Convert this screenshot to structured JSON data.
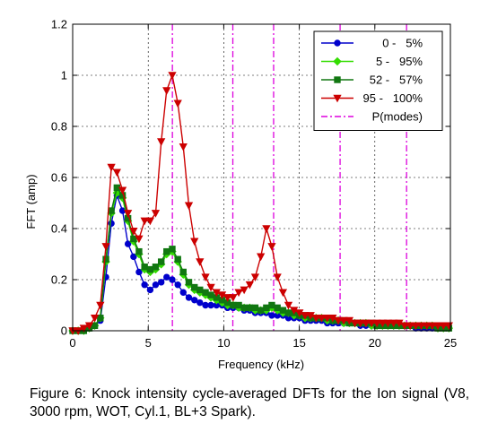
{
  "caption": "Figure 6: Knock intensity cycle-averaged DFTs for the Ion signal (V8, 3000 rpm, WOT, Cyl.1, BL+3 Spark).",
  "chart_data": {
    "type": "line",
    "title": "",
    "xlabel": "Frequency (kHz)",
    "ylabel": "FFT (amp)",
    "xlim": [
      0,
      25
    ],
    "ylim": [
      0,
      1.2
    ],
    "xticks": [
      0,
      5,
      10,
      15,
      20,
      25
    ],
    "xtick_labels": [
      "0",
      "5",
      "10",
      "15",
      "20",
      "25"
    ],
    "yticks": [
      0,
      0.2,
      0.4,
      0.6,
      0.8,
      1,
      1.2
    ],
    "ytick_labels": [
      "0",
      "0.2",
      "0.4",
      "0.6",
      "0.8",
      "1",
      "1.2"
    ],
    "grid": true,
    "legend_position": "top-right",
    "series": [
      {
        "name": "0 -   5%",
        "color": "#0000cc",
        "marker": "circle",
        "x": [
          0,
          0.366,
          0.732,
          1.1,
          1.46,
          1.83,
          2.2,
          2.56,
          2.93,
          3.3,
          3.66,
          4.03,
          4.39,
          4.76,
          5.13,
          5.49,
          5.86,
          6.22,
          6.59,
          6.96,
          7.32,
          7.69,
          8.06,
          8.42,
          8.79,
          9.15,
          9.52,
          9.89,
          10.25,
          10.62,
          10.99,
          11.35,
          11.72,
          12.08,
          12.45,
          12.82,
          13.18,
          13.55,
          13.92,
          14.28,
          14.65,
          15.01,
          15.38,
          15.75,
          16.11,
          16.48,
          16.85,
          17.21,
          17.58,
          17.94,
          18.31,
          18.68,
          19.04,
          19.41,
          19.78,
          20.14,
          20.51,
          20.87,
          21.24,
          21.61,
          21.97,
          22.34,
          22.71,
          23.07,
          23.44,
          23.8,
          24.17,
          24.54,
          24.9
        ],
        "values": [
          0,
          0,
          0,
          0.01,
          0.02,
          0.04,
          0.21,
          0.42,
          0.53,
          0.47,
          0.34,
          0.29,
          0.23,
          0.18,
          0.16,
          0.18,
          0.19,
          0.21,
          0.2,
          0.18,
          0.15,
          0.13,
          0.12,
          0.11,
          0.1,
          0.1,
          0.1,
          0.1,
          0.09,
          0.09,
          0.09,
          0.08,
          0.08,
          0.07,
          0.07,
          0.07,
          0.06,
          0.06,
          0.06,
          0.05,
          0.05,
          0.05,
          0.04,
          0.04,
          0.04,
          0.04,
          0.03,
          0.03,
          0.03,
          0.03,
          0.03,
          0.03,
          0.02,
          0.02,
          0.02,
          0.02,
          0.02,
          0.02,
          0.02,
          0.02,
          0.02,
          0.02,
          0.01,
          0.01,
          0.01,
          0.01,
          0.01,
          0.01,
          0.01
        ]
      },
      {
        "name": "5 -   95%",
        "color": "#33dd00",
        "marker": "diamond",
        "x": [
          0,
          0.366,
          0.732,
          1.1,
          1.46,
          1.83,
          2.2,
          2.56,
          2.93,
          3.3,
          3.66,
          4.03,
          4.39,
          4.76,
          5.13,
          5.49,
          5.86,
          6.22,
          6.59,
          6.96,
          7.32,
          7.69,
          8.06,
          8.42,
          8.79,
          9.15,
          9.52,
          9.89,
          10.25,
          10.62,
          10.99,
          11.35,
          11.72,
          12.08,
          12.45,
          12.82,
          13.18,
          13.55,
          13.92,
          14.28,
          14.65,
          15.01,
          15.38,
          15.75,
          16.11,
          16.48,
          16.85,
          17.21,
          17.58,
          17.94,
          18.31,
          18.68,
          19.04,
          19.41,
          19.78,
          20.14,
          20.51,
          20.87,
          21.24,
          21.61,
          21.97,
          22.34,
          22.71,
          23.07,
          23.44,
          23.8,
          24.17,
          24.54,
          24.9
        ],
        "values": [
          0,
          0,
          0,
          0.01,
          0.02,
          0.05,
          0.27,
          0.46,
          0.54,
          0.52,
          0.43,
          0.35,
          0.3,
          0.24,
          0.23,
          0.24,
          0.26,
          0.3,
          0.31,
          0.27,
          0.22,
          0.18,
          0.16,
          0.15,
          0.14,
          0.13,
          0.12,
          0.11,
          0.1,
          0.1,
          0.09,
          0.09,
          0.09,
          0.08,
          0.08,
          0.08,
          0.09,
          0.08,
          0.07,
          0.07,
          0.06,
          0.06,
          0.05,
          0.05,
          0.05,
          0.05,
          0.04,
          0.04,
          0.04,
          0.03,
          0.03,
          0.03,
          0.03,
          0.03,
          0.02,
          0.02,
          0.02,
          0.02,
          0.02,
          0.02,
          0.02,
          0.02,
          0.02,
          0.02,
          0.02,
          0.02,
          0.01,
          0.01,
          0.01
        ]
      },
      {
        "name": "52 -   57%",
        "color": "#117711",
        "marker": "square",
        "x": [
          0,
          0.366,
          0.732,
          1.1,
          1.46,
          1.83,
          2.2,
          2.56,
          2.93,
          3.3,
          3.66,
          4.03,
          4.39,
          4.76,
          5.13,
          5.49,
          5.86,
          6.22,
          6.59,
          6.96,
          7.32,
          7.69,
          8.06,
          8.42,
          8.79,
          9.15,
          9.52,
          9.89,
          10.25,
          10.62,
          10.99,
          11.35,
          11.72,
          12.08,
          12.45,
          12.82,
          13.18,
          13.55,
          13.92,
          14.28,
          14.65,
          15.01,
          15.38,
          15.75,
          16.11,
          16.48,
          16.85,
          17.21,
          17.58,
          17.94,
          18.31,
          18.68,
          19.04,
          19.41,
          19.78,
          20.14,
          20.51,
          20.87,
          21.24,
          21.61,
          21.97,
          22.34,
          22.71,
          23.07,
          23.44,
          23.8,
          24.17,
          24.54,
          24.9
        ],
        "values": [
          0,
          0,
          0,
          0.01,
          0.02,
          0.05,
          0.28,
          0.47,
          0.56,
          0.53,
          0.44,
          0.36,
          0.31,
          0.25,
          0.24,
          0.25,
          0.27,
          0.31,
          0.32,
          0.28,
          0.23,
          0.19,
          0.17,
          0.16,
          0.15,
          0.14,
          0.13,
          0.12,
          0.11,
          0.1,
          0.1,
          0.09,
          0.09,
          0.09,
          0.08,
          0.09,
          0.1,
          0.09,
          0.08,
          0.07,
          0.07,
          0.06,
          0.06,
          0.05,
          0.05,
          0.05,
          0.05,
          0.04,
          0.04,
          0.04,
          0.03,
          0.03,
          0.03,
          0.03,
          0.03,
          0.02,
          0.02,
          0.02,
          0.02,
          0.02,
          0.02,
          0.02,
          0.02,
          0.02,
          0.02,
          0.02,
          0.01,
          0.01,
          0.01
        ]
      },
      {
        "name": "95 -   100%",
        "color": "#cc0000",
        "marker": "triangle-down",
        "x": [
          0,
          0.366,
          0.732,
          1.1,
          1.46,
          1.83,
          2.2,
          2.56,
          2.93,
          3.3,
          3.66,
          4.03,
          4.39,
          4.76,
          5.13,
          5.49,
          5.86,
          6.22,
          6.59,
          6.96,
          7.32,
          7.69,
          8.06,
          8.42,
          8.79,
          9.15,
          9.52,
          9.89,
          10.25,
          10.62,
          10.99,
          11.35,
          11.72,
          12.08,
          12.45,
          12.82,
          13.18,
          13.55,
          13.92,
          14.28,
          14.65,
          15.01,
          15.38,
          15.75,
          16.11,
          16.48,
          16.85,
          17.21,
          17.58,
          17.94,
          18.31,
          18.68,
          19.04,
          19.41,
          19.78,
          20.14,
          20.51,
          20.87,
          21.24,
          21.61,
          21.97,
          22.34,
          22.71,
          23.07,
          23.44,
          23.8,
          24.17,
          24.54,
          24.9
        ],
        "values": [
          0,
          0,
          0.01,
          0.02,
          0.05,
          0.1,
          0.33,
          0.64,
          0.62,
          0.55,
          0.46,
          0.39,
          0.36,
          0.43,
          0.43,
          0.46,
          0.74,
          0.94,
          1.0,
          0.89,
          0.72,
          0.49,
          0.35,
          0.27,
          0.21,
          0.17,
          0.15,
          0.14,
          0.13,
          0.13,
          0.15,
          0.16,
          0.18,
          0.21,
          0.29,
          0.4,
          0.33,
          0.21,
          0.15,
          0.1,
          0.08,
          0.07,
          0.06,
          0.06,
          0.05,
          0.05,
          0.05,
          0.05,
          0.04,
          0.04,
          0.04,
          0.03,
          0.03,
          0.03,
          0.03,
          0.03,
          0.03,
          0.03,
          0.03,
          0.03,
          0.02,
          0.02,
          0.02,
          0.02,
          0.02,
          0.02,
          0.02,
          0.02,
          0.02
        ]
      }
    ],
    "mode_lines": {
      "name": "P(modes)",
      "color": "#dd00dd",
      "x": [
        6.6,
        10.6,
        13.3,
        17.7,
        22.1
      ]
    }
  }
}
